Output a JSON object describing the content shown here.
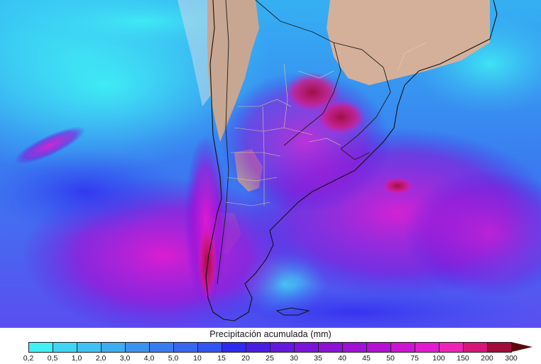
{
  "map": {
    "region": "South America",
    "variable": "accumulated precipitation"
  },
  "legend": {
    "title": "Precipitación acumulada (mm)",
    "labels": [
      "0,2",
      "0,5",
      "1,0",
      "2,0",
      "3,0",
      "4,0",
      "5,0",
      "10",
      "15",
      "20",
      "25",
      "30",
      "35",
      "40",
      "45",
      "50",
      "75",
      "100",
      "150",
      "200",
      "300"
    ],
    "colors": [
      "#3ff0f5",
      "#3ed6f4",
      "#3fc2f3",
      "#3fabf1",
      "#3c93ef",
      "#3a7cf0",
      "#3767f1",
      "#3155f2",
      "#2f2af0",
      "#4a1de6",
      "#6418e0",
      "#7a14dc",
      "#8c12d8",
      "#a011d6",
      "#b50fd4",
      "#cc14d2",
      "#e21ad0",
      "#f023b6",
      "#d8167a",
      "#a20c3c"
    ],
    "arrow_color": "#5a0a0a"
  }
}
